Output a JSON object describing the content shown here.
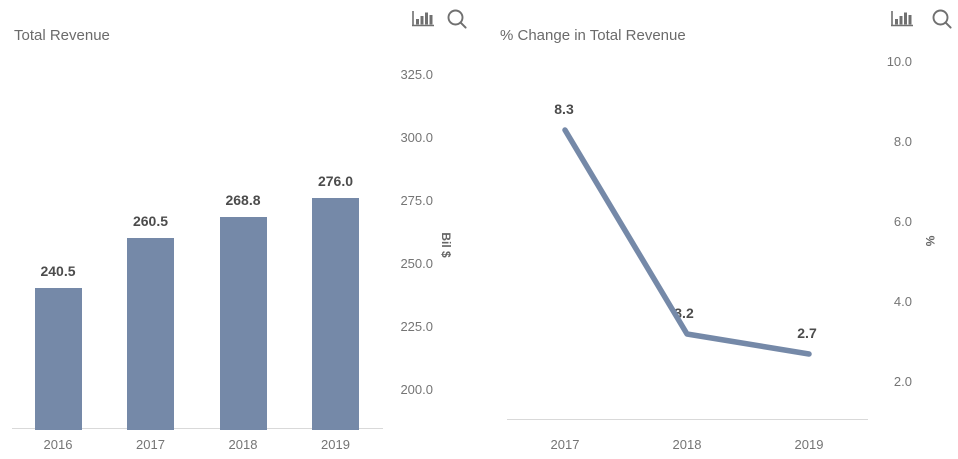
{
  "chart_data": [
    {
      "type": "bar",
      "title": "Total Revenue",
      "categories": [
        "2016",
        "2017",
        "2018",
        "2019"
      ],
      "values": [
        240.5,
        260.5,
        268.8,
        276.0
      ],
      "data_labels": [
        "240.5",
        "260.5",
        "268.8",
        "276.0"
      ],
      "ylabel": "Bil $",
      "ytick_labels": [
        "325.0",
        "300.0",
        "275.0",
        "250.0",
        "225.0",
        "200.0"
      ],
      "ytick_values": [
        325,
        300,
        275,
        250,
        225,
        200
      ],
      "ylim": [
        185,
        340
      ],
      "grid": false,
      "legend": "none",
      "bar_color": "#7589a8",
      "icons": [
        "column-chart-icon",
        "search-icon"
      ]
    },
    {
      "type": "line",
      "title": "% Change in Total Revenue",
      "categories": [
        "2017",
        "2018",
        "2019"
      ],
      "values": [
        8.3,
        3.2,
        2.7
      ],
      "data_labels": [
        "8.3",
        "3.2",
        "2.7"
      ],
      "ylabel": "%",
      "ytick_labels": [
        "10.0",
        "8.0",
        "6.0",
        "4.0",
        "2.0"
      ],
      "ytick_values": [
        10,
        8,
        6,
        4,
        2
      ],
      "ylim": [
        1.1,
        10.9
      ],
      "grid": false,
      "legend": "none",
      "line_color": "#7589a8",
      "icons": [
        "column-chart-icon",
        "search-icon"
      ]
    }
  ],
  "colors": {
    "accent": "#7589a8",
    "title_text": "#6b6b6b",
    "tick_text": "#757575",
    "data_label_text": "#4c4c4c",
    "axis_line": "#d9d9d9",
    "icon": "#707070",
    "background": "#ffffff"
  }
}
